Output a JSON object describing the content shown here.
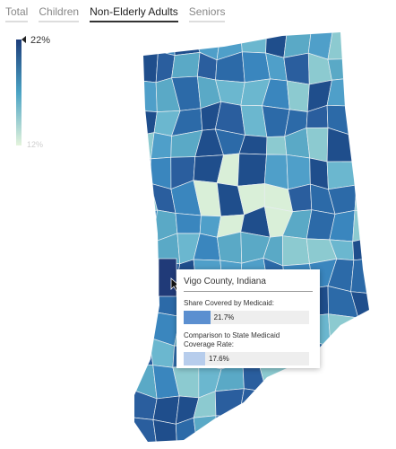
{
  "tabs": [
    "Total",
    "Children",
    "Non-Elderly Adults",
    "Seniors"
  ],
  "active_tab": 2,
  "legend": {
    "max": 22,
    "max_label": "22%",
    "min": 12,
    "min_label": "12%"
  },
  "tooltip": {
    "title": "Vigo County, Indiana",
    "rows": [
      {
        "label": "Share Covered by Medicaid:",
        "value": 21.7,
        "value_label": "21.7%"
      },
      {
        "label": "Comparison to State Medicaid Coverage Rate:",
        "value": 17.6,
        "value_label": "17.6%"
      }
    ]
  }
}
